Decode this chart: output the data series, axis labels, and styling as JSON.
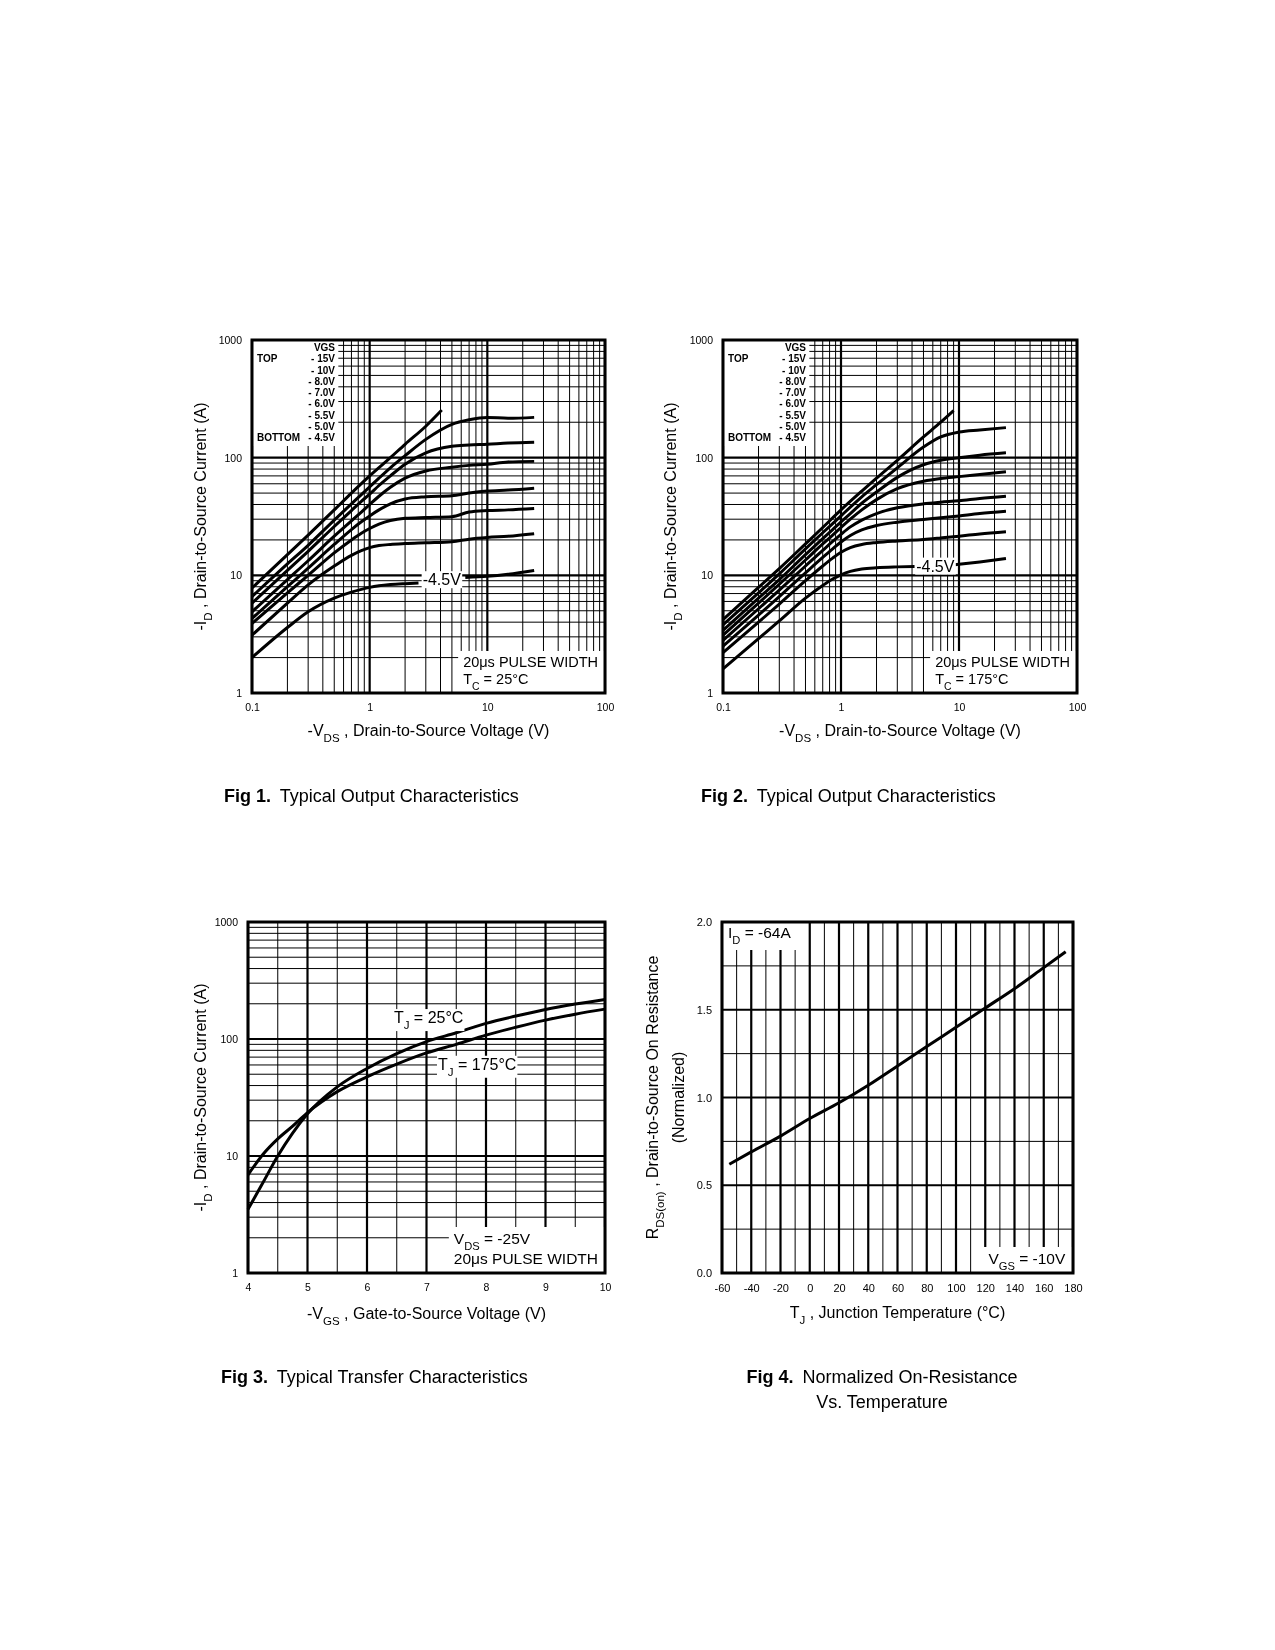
{
  "chart_data": [
    {
      "type": "line",
      "title": "Fig 1. Typical Output Characteristics",
      "xlabel": "-V$_{DS}$ , Drain-to-Source Voltage (V)",
      "ylabel": "-I$_{D}$ , Drain-to-Source Current (A)",
      "log": "xy",
      "grid": true,
      "xlim": [
        0.1,
        100
      ],
      "ylim": [
        1,
        1000
      ],
      "xticks": [
        0.1,
        {
          "value": 0.2,
          "label": null
        },
        {
          "value": 0.3,
          "label": null
        },
        {
          "value": 0.4,
          "label": null
        },
        {
          "value": 0.5,
          "label": null
        },
        {
          "value": 0.6,
          "label": null
        },
        {
          "value": 0.7,
          "label": null
        },
        {
          "value": 0.8,
          "label": null
        },
        {
          "value": 0.9,
          "label": null
        },
        1,
        {
          "value": 2,
          "label": null
        },
        {
          "value": 3,
          "label": null
        },
        {
          "value": 4,
          "label": null
        },
        {
          "value": 5,
          "label": null
        },
        {
          "value": 6,
          "label": null
        },
        {
          "value": 7,
          "label": null
        },
        {
          "value": 8,
          "label": null
        },
        {
          "value": 9,
          "label": null
        },
        10,
        {
          "value": 20,
          "label": null
        },
        {
          "value": 30,
          "label": null
        },
        {
          "value": 40,
          "label": null
        },
        {
          "value": 50,
          "label": null
        },
        {
          "value": 60,
          "label": null
        },
        {
          "value": 70,
          "label": null
        },
        {
          "value": 80,
          "label": null
        },
        {
          "value": 90,
          "label": null
        },
        100
      ],
      "yticks": [
        1,
        {
          "value": 2,
          "label": null
        },
        {
          "value": 3,
          "label": null
        },
        {
          "value": 4,
          "label": null
        },
        {
          "value": 5,
          "label": null
        },
        {
          "value": 6,
          "label": null
        },
        {
          "value": 7,
          "label": null
        },
        {
          "value": 8,
          "label": null
        },
        {
          "value": 9,
          "label": null
        },
        10,
        {
          "value": 20,
          "label": null
        },
        {
          "value": 30,
          "label": null
        },
        {
          "value": 40,
          "label": null
        },
        {
          "value": 50,
          "label": null
        },
        {
          "value": 60,
          "label": null
        },
        {
          "value": 70,
          "label": null
        },
        {
          "value": 80,
          "label": null
        },
        {
          "value": 90,
          "label": null
        },
        100,
        {
          "value": 200,
          "label": null
        },
        {
          "value": 300,
          "label": null
        },
        {
          "value": 400,
          "label": null
        },
        {
          "value": 500,
          "label": null
        },
        {
          "value": 600,
          "label": null
        },
        {
          "value": 700,
          "label": null
        },
        {
          "value": 800,
          "label": null
        },
        {
          "value": 900,
          "label": null
        },
        1000
      ],
      "annotations": [
        "VGS",
        "TOP",
        "- 15V",
        "- 10V",
        "- 8.0V",
        "- 7.0V",
        "- 6.0V",
        "- 5.5V",
        "- 5.0V",
        "BOTTOM",
        "- 4.5V",
        "20μs PULSE WIDTH",
        "T$_{C}$ = 25°C",
        {
          "text": "-4.5V",
          "x": 4.1,
          "y": 9.2
        }
      ],
      "series": [
        {
          "color": "#000000",
          "x": [
            0.1,
            0.2,
            0.3,
            0.5,
            0.7,
            1,
            1.5,
            2,
            3,
            4.1
          ],
          "values": [
            7.8,
            15,
            22,
            36,
            50,
            70,
            100,
            130,
            185,
            254
          ]
        },
        {
          "color": "#000000",
          "x": [
            0.1,
            0.2,
            0.3,
            0.5,
            0.7,
            0.85,
            1,
            1.2,
            1.5,
            2,
            3,
            5,
            7,
            10,
            15,
            25
          ],
          "values": [
            6.6,
            12.5,
            18,
            29.5,
            40.5,
            48.5,
            56.5,
            67,
            82,
            104,
            143,
            192,
            210,
            220,
            216,
            220
          ]
        },
        {
          "color": "#000000",
          "x": [
            0.1,
            0.2,
            0.3,
            0.5,
            0.7,
            0.85,
            1,
            1.2,
            1.5,
            2,
            3,
            5,
            7,
            10,
            15,
            25
          ],
          "values": [
            5.8,
            11,
            16,
            26,
            35.5,
            42.5,
            49,
            58,
            70,
            88,
            110,
            125,
            128,
            130,
            133,
            135
          ]
        },
        {
          "color": "#000000",
          "x": [
            0.1,
            0.2,
            0.3,
            0.5,
            0.7,
            0.85,
            1,
            1.2,
            1.5,
            2,
            3,
            5,
            7,
            10,
            15,
            25
          ],
          "values": [
            4.9,
            9.2,
            13.3,
            21.5,
            29,
            34.5,
            40,
            47,
            56,
            67,
            77,
            83,
            86,
            88,
            92,
            93
          ]
        },
        {
          "color": "#000000",
          "x": [
            0.1,
            0.2,
            0.3,
            0.5,
            0.7,
            0.85,
            1,
            1.2,
            1.5,
            2,
            3,
            5,
            7,
            10,
            15,
            25
          ],
          "values": [
            4.3,
            8,
            11.5,
            18.3,
            24.5,
            28.5,
            32,
            36,
            40.5,
            44.5,
            46.5,
            47.5,
            50,
            52,
            53,
            55
          ]
        },
        {
          "color": "#000000",
          "x": [
            0.1,
            0.2,
            0.3,
            0.5,
            0.7,
            0.85,
            1,
            1.2,
            1.5,
            2,
            3,
            5,
            7,
            10,
            15,
            25
          ],
          "values": [
            3.9,
            7.1,
            10,
            15.5,
            20,
            22.8,
            25,
            27.2,
            29.2,
            30.5,
            31,
            31.5,
            34.5,
            35.5,
            36,
            37
          ]
        },
        {
          "color": "#000000",
          "x": [
            0.1,
            0.2,
            0.3,
            0.5,
            0.7,
            0.85,
            1,
            1.2,
            1.5,
            2,
            3,
            5,
            7,
            10,
            15,
            25
          ],
          "values": [
            3.1,
            5.8,
            8.3,
            12,
            14.8,
            16.2,
            17.2,
            17.9,
            18.3,
            18.6,
            18.9,
            19.3,
            20.3,
            21,
            21.5,
            22.6
          ]
        },
        {
          "color": "#000000",
          "x": [
            0.1,
            0.2,
            0.3,
            0.5,
            0.7,
            0.85,
            1,
            1.2,
            1.5,
            2,
            2.6,
            4,
            6.5,
            10,
            15,
            25
          ],
          "values": [
            2,
            3.6,
            4.9,
            6.4,
            7.2,
            7.6,
            7.9,
            8.15,
            8.35,
            8.5,
            8.6,
            null,
            9.6,
            9.8,
            10.2,
            11
          ]
        }
      ]
    },
    {
      "type": "line",
      "title": "Fig 2. Typical Output Characteristics",
      "xlabel": "-V$_{DS}$ , Drain-to-Source Voltage (V)",
      "ylabel": "-I$_{D}$ , Drain-to-Source Current (A)",
      "log": "xy",
      "grid": true,
      "xlim": [
        0.1,
        100
      ],
      "ylim": [
        1,
        1000
      ],
      "xticks": [
        0.1,
        {
          "value": 0.2,
          "label": null
        },
        {
          "value": 0.3,
          "label": null
        },
        {
          "value": 0.4,
          "label": null
        },
        {
          "value": 0.5,
          "label": null
        },
        {
          "value": 0.6,
          "label": null
        },
        {
          "value": 0.7,
          "label": null
        },
        {
          "value": 0.8,
          "label": null
        },
        {
          "value": 0.9,
          "label": null
        },
        1,
        {
          "value": 2,
          "label": null
        },
        {
          "value": 3,
          "label": null
        },
        {
          "value": 4,
          "label": null
        },
        {
          "value": 5,
          "label": null
        },
        {
          "value": 6,
          "label": null
        },
        {
          "value": 7,
          "label": null
        },
        {
          "value": 8,
          "label": null
        },
        {
          "value": 9,
          "label": null
        },
        10,
        {
          "value": 20,
          "label": null
        },
        {
          "value": 30,
          "label": null
        },
        {
          "value": 40,
          "label": null
        },
        {
          "value": 50,
          "label": null
        },
        {
          "value": 60,
          "label": null
        },
        {
          "value": 70,
          "label": null
        },
        {
          "value": 80,
          "label": null
        },
        {
          "value": 90,
          "label": null
        },
        100
      ],
      "yticks": [
        1,
        {
          "value": 2,
          "label": null
        },
        {
          "value": 3,
          "label": null
        },
        {
          "value": 4,
          "label": null
        },
        {
          "value": 5,
          "label": null
        },
        {
          "value": 6,
          "label": null
        },
        {
          "value": 7,
          "label": null
        },
        {
          "value": 8,
          "label": null
        },
        {
          "value": 9,
          "label": null
        },
        10,
        {
          "value": 20,
          "label": null
        },
        {
          "value": 30,
          "label": null
        },
        {
          "value": 40,
          "label": null
        },
        {
          "value": 50,
          "label": null
        },
        {
          "value": 60,
          "label": null
        },
        {
          "value": 70,
          "label": null
        },
        {
          "value": 80,
          "label": null
        },
        {
          "value": 90,
          "label": null
        },
        100,
        {
          "value": 200,
          "label": null
        },
        {
          "value": 300,
          "label": null
        },
        {
          "value": 400,
          "label": null
        },
        {
          "value": 500,
          "label": null
        },
        {
          "value": 600,
          "label": null
        },
        {
          "value": 700,
          "label": null
        },
        {
          "value": 800,
          "label": null
        },
        {
          "value": 900,
          "label": null
        },
        1000
      ],
      "annotations": [
        "VGS",
        "TOP",
        "- 15V",
        "- 10V",
        "- 8.0V",
        "- 7.0V",
        "- 6.0V",
        "- 5.5V",
        "- 5.0V",
        "BOTTOM",
        "- 4.5V",
        "20μs PULSE WIDTH",
        "T$_{C}$ = 175°C",
        {
          "text": "-4.5V",
          "x": 6.3,
          "y": 12
        }
      ],
      "series": [
        {
          "color": "#000000",
          "x": [
            0.1,
            0.2,
            0.3,
            0.5,
            0.7,
            1,
            1.5,
            2,
            3,
            5,
            7,
            9
          ],
          "values": [
            4.2,
            7.9,
            11.4,
            18.5,
            25.5,
            36,
            52,
            67,
            95,
            150,
            200,
            251
          ]
        },
        {
          "color": "#000000",
          "x": [
            0.1,
            0.2,
            0.3,
            0.5,
            0.7,
            0.85,
            1,
            1.2,
            1.5,
            2,
            3,
            5,
            7,
            10,
            15,
            25
          ],
          "values": [
            3.8,
            7.1,
            10.3,
            16.8,
            23,
            27.5,
            32,
            38,
            46.5,
            59,
            82,
            123,
            150,
            165,
            172,
            180
          ]
        },
        {
          "color": "#000000",
          "x": [
            0.1,
            0.2,
            0.3,
            0.5,
            0.7,
            0.85,
            1,
            1.2,
            1.5,
            2,
            3,
            5,
            7,
            10,
            15,
            25
          ],
          "values": [
            3.4,
            6.4,
            9.2,
            15,
            20.5,
            24.5,
            28.5,
            33.5,
            41,
            51,
            68,
            87,
            95,
            100,
            105,
            110
          ]
        },
        {
          "color": "#000000",
          "x": [
            0.1,
            0.2,
            0.3,
            0.5,
            0.7,
            0.85,
            1,
            1.2,
            1.5,
            2,
            3,
            5,
            7,
            10,
            15,
            25
          ],
          "values": [
            3.1,
            5.8,
            8.4,
            13.5,
            18.5,
            22,
            25.5,
            30,
            36,
            44,
            54.5,
            63,
            66.5,
            69,
            72,
            76
          ]
        },
        {
          "color": "#000000",
          "x": [
            0.1,
            0.2,
            0.3,
            0.5,
            0.7,
            0.85,
            1,
            1.2,
            1.5,
            2,
            3,
            5,
            7,
            10,
            15,
            25
          ],
          "values": [
            2.8,
            5.2,
            7.5,
            12,
            16.3,
            19.4,
            22.3,
            25.8,
            29.5,
            33.5,
            37.5,
            40.5,
            41.8,
            43,
            45,
            47
          ]
        },
        {
          "color": "#000000",
          "x": [
            0.1,
            0.2,
            0.3,
            0.5,
            0.7,
            0.85,
            1,
            1.2,
            1.5,
            2,
            3,
            5,
            7,
            10,
            15,
            25
          ],
          "values": [
            2.5,
            4.6,
            6.6,
            10.5,
            14.2,
            16.8,
            19.2,
            21.8,
            24.3,
            26.5,
            28.3,
            29.8,
            30.8,
            32,
            33.5,
            35
          ]
        },
        {
          "color": "#000000",
          "x": [
            0.1,
            0.2,
            0.3,
            0.5,
            0.7,
            0.85,
            1,
            1.2,
            1.5,
            2,
            3,
            5,
            7,
            10,
            15,
            25
          ],
          "values": [
            2.2,
            4,
            5.7,
            9,
            12,
            14,
            15.7,
            17.2,
            18.3,
            19,
            19.6,
            20.2,
            20.8,
            21.5,
            22.5,
            23.5
          ]
        },
        {
          "color": "#000000",
          "x": [
            0.1,
            0.2,
            0.3,
            0.5,
            0.7,
            0.85,
            1,
            1.2,
            1.5,
            2,
            3,
            4.2,
            6.3,
            9.3,
            10,
            15,
            25
          ],
          "values": [
            1.6,
            2.9,
            4.1,
            6.4,
            8.2,
            9.3,
            10.1,
            10.8,
            11.3,
            11.6,
            11.8,
            11.9,
            null,
            12.3,
            12.4,
            13,
            13.9
          ]
        }
      ]
    },
    {
      "type": "line",
      "title": "Fig 3. Typical Transfer Characteristics",
      "xlabel": "-V$_{GS}$ , Gate-to-Source Voltage (V)",
      "ylabel": "-I$_{D}$ , Drain-to-Source Current (A)",
      "log": "y",
      "grid": true,
      "xlim": [
        4,
        10
      ],
      "ylim": [
        1,
        1000
      ],
      "xticks": [
        4,
        {
          "value": 4.5,
          "label": null
        },
        5,
        {
          "value": 5.5,
          "label": null
        },
        6,
        {
          "value": 6.5,
          "label": null
        },
        7,
        {
          "value": 7.5,
          "label": null
        },
        8,
        {
          "value": 8.5,
          "label": null
        },
        9,
        {
          "value": 9.5,
          "label": null
        },
        10
      ],
      "yticks": [
        1,
        {
          "value": 2,
          "label": null
        },
        {
          "value": 3,
          "label": null
        },
        {
          "value": 4,
          "label": null
        },
        {
          "value": 5,
          "label": null
        },
        {
          "value": 6,
          "label": null
        },
        {
          "value": 7,
          "label": null
        },
        {
          "value": 8,
          "label": null
        },
        {
          "value": 9,
          "label": null
        },
        10,
        {
          "value": 20,
          "label": null
        },
        {
          "value": 30,
          "label": null
        },
        {
          "value": 40,
          "label": null
        },
        {
          "value": 50,
          "label": null
        },
        {
          "value": 60,
          "label": null
        },
        {
          "value": 70,
          "label": null
        },
        {
          "value": 80,
          "label": null
        },
        {
          "value": 90,
          "label": null
        },
        100,
        {
          "value": 200,
          "label": null
        },
        {
          "value": 300,
          "label": null
        },
        {
          "value": 400,
          "label": null
        },
        {
          "value": 500,
          "label": null
        },
        {
          "value": 600,
          "label": null
        },
        {
          "value": 700,
          "label": null
        },
        {
          "value": 800,
          "label": null
        },
        {
          "value": 900,
          "label": null
        },
        1000
      ],
      "annotations": [
        "V$_{DS}$ = -25V",
        "20μs PULSE WIDTH",
        "T$_{J}$ = 25°C",
        "T$_{J}$ = 175°C"
      ],
      "x": [
        4,
        4.25,
        4.5,
        4.75,
        5,
        5.5,
        6,
        6.5,
        7,
        7.5,
        8,
        8.5,
        9,
        9.5,
        10
      ],
      "series": [
        {
          "color": "#000000",
          "values": [
            3.5,
            5.9,
            10,
            15.7,
            23,
            39,
            56,
            75,
            95,
            113,
            136,
            157,
            179,
            199,
            218
          ]
        },
        {
          "color": "#000000",
          "values": [
            6.9,
            10.3,
            14,
            18,
            23.5,
            35.5,
            47.5,
            61,
            76,
            90,
            108,
            126,
            145,
            163,
            180
          ]
        }
      ]
    },
    {
      "type": "line",
      "title": "Fig 4. Normalized On-Resistance\nVs. Temperature",
      "xlabel": "T$_{J}$ , Junction Temperature (°C)",
      "ylabel": "R$_{DS(on)}$ , Drain-to-Source On Resistance\n(Normalized)",
      "grid": true,
      "xlim": [
        -60,
        180
      ],
      "ylim": [
        0,
        2
      ],
      "xticks": [
        -60,
        {
          "value": -50,
          "label": null
        },
        -40,
        {
          "value": -30,
          "label": null
        },
        -20,
        {
          "value": -10,
          "label": null
        },
        0,
        {
          "value": 10,
          "label": null
        },
        20,
        {
          "value": 30,
          "label": null
        },
        40,
        {
          "value": 50,
          "label": null
        },
        60,
        {
          "value": 70,
          "label": null
        },
        80,
        {
          "value": 90,
          "label": null
        },
        100,
        {
          "value": 110,
          "label": null
        },
        120,
        {
          "value": 130,
          "label": null
        },
        140,
        {
          "value": 150,
          "label": null
        },
        160,
        {
          "value": 170,
          "label": null
        },
        180
      ],
      "yticks": [
        {
          "value": 0,
          "label": "0.0"
        },
        {
          "value": 0.25,
          "label": null
        },
        0.5,
        {
          "value": 0.75,
          "label": null
        },
        {
          "value": 1,
          "label": "1.0"
        },
        {
          "value": 1.25,
          "label": null
        },
        1.5,
        {
          "value": 1.75,
          "label": null
        },
        {
          "value": 2,
          "label": "2.0"
        }
      ],
      "annotations": [
        "I$_{D}$ = -64A",
        "V$_{GS}$ = -10V"
      ],
      "series": [
        {
          "color": "#000000",
          "x": [
            -55,
            -40,
            -20,
            0,
            20,
            40,
            60,
            80,
            100,
            120,
            140,
            160,
            175
          ],
          "values": [
            0.62,
            0.69,
            0.78,
            0.88,
            0.97,
            1.07,
            1.18,
            1.29,
            1.4,
            1.51,
            1.62,
            1.74,
            1.83
          ]
        }
      ]
    }
  ]
}
